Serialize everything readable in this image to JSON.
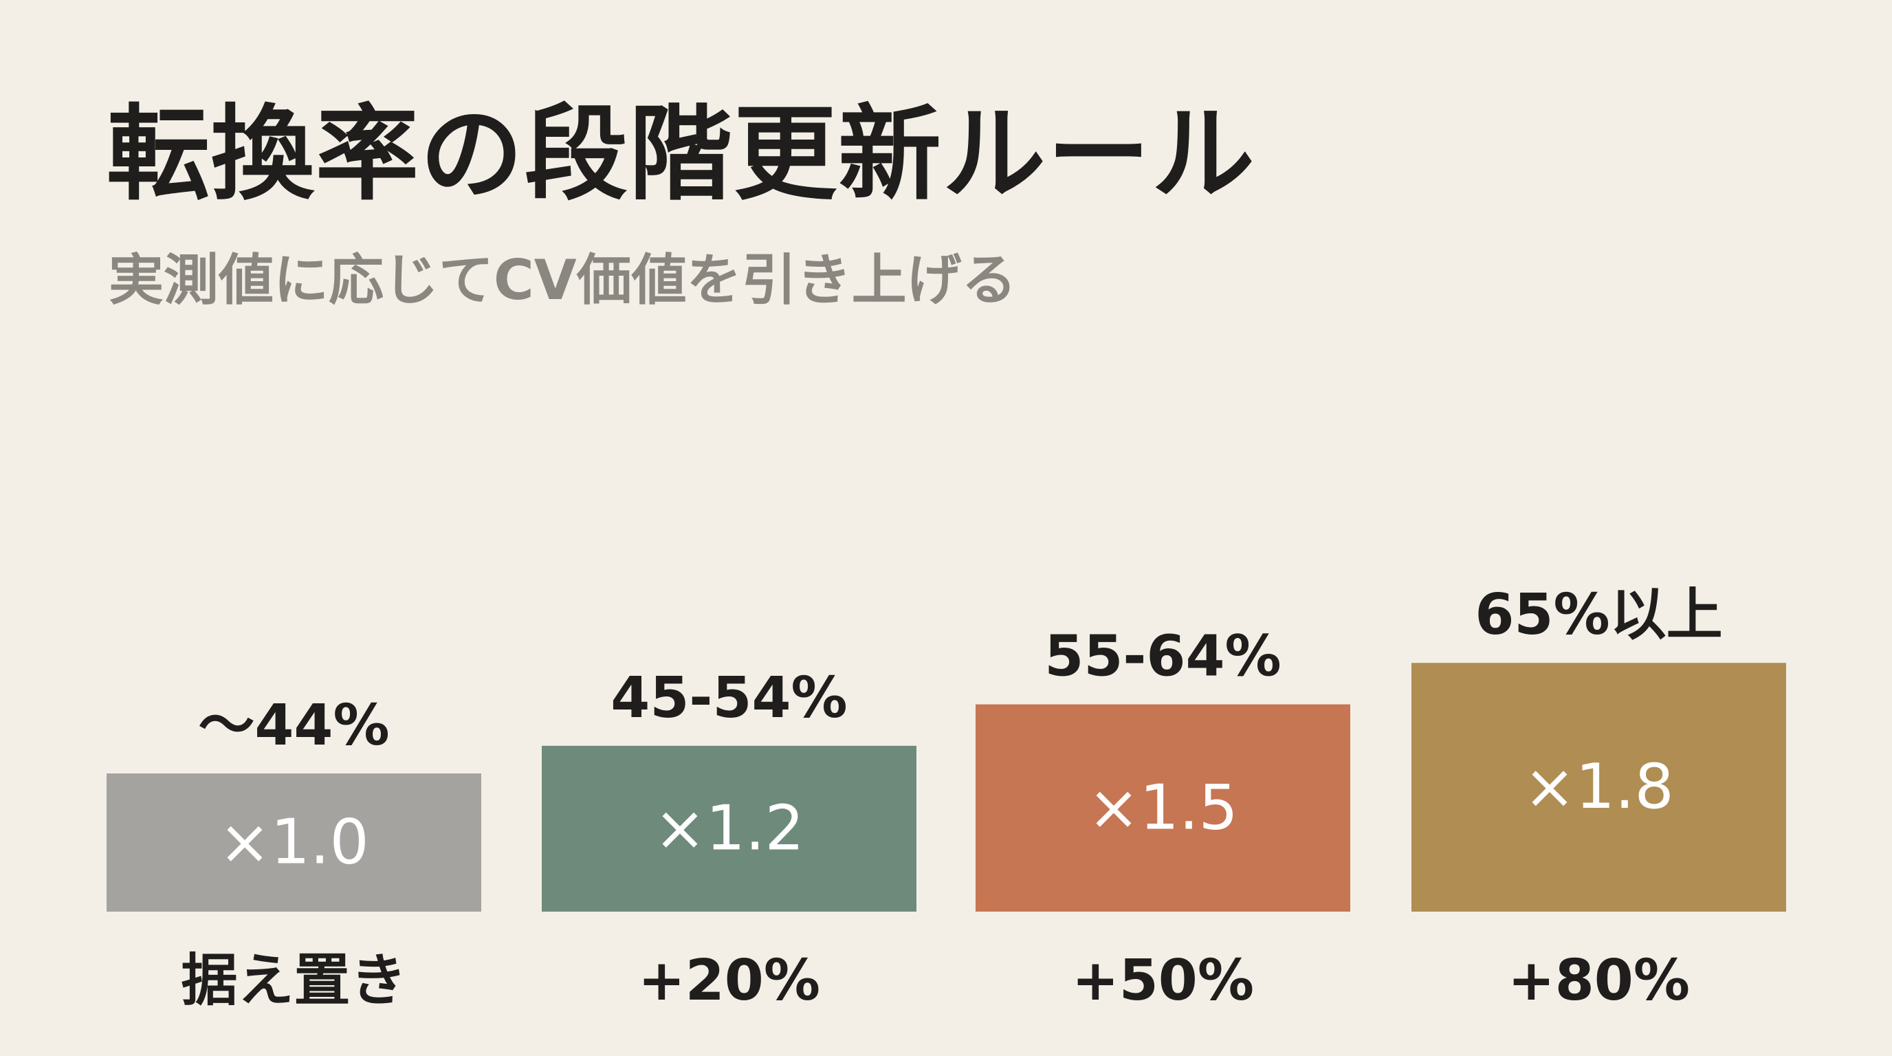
{
  "header": {
    "title": "転換率の段階更新ルール",
    "subtitle": "実測値に応じてCV価値を引き上げる"
  },
  "chart_data": {
    "type": "bar",
    "categories": [
      "〜44%",
      "45-54%",
      "55-64%",
      "65%以上"
    ],
    "values": [
      1.0,
      1.2,
      1.5,
      1.8
    ],
    "value_labels": [
      "×1.0",
      "×1.2",
      "×1.5",
      "×1.8"
    ],
    "bottom_labels": [
      "据え置き",
      "+20%",
      "+50%",
      "+80%"
    ],
    "colors": [
      "#a4a39f",
      "#6e8a7b",
      "#c67652",
      "#b08d52"
    ],
    "title": "",
    "xlabel": "",
    "ylabel": "",
    "ylim": [
      0,
      2.33
    ],
    "grid": false,
    "legend": "none"
  }
}
